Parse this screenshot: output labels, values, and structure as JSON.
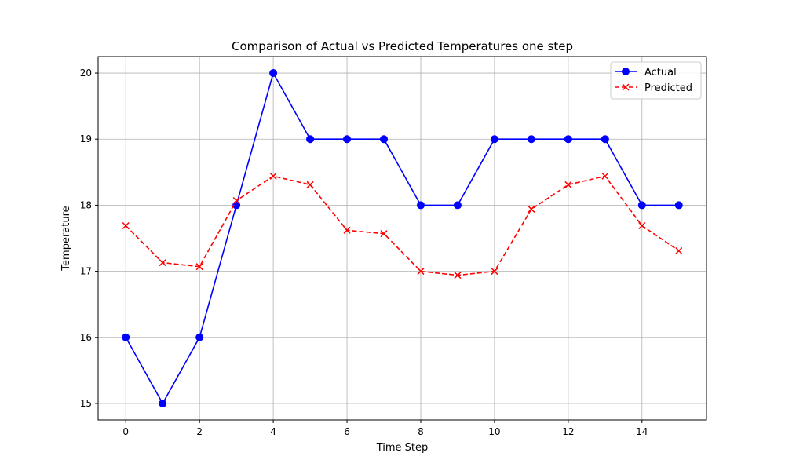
{
  "chart_data": {
    "type": "line",
    "title": "Comparison of Actual vs Predicted Temperatures one step",
    "xlabel": "Time Step",
    "ylabel": "Temperature",
    "xlim": [
      -0.75,
      15.75
    ],
    "ylim": [
      14.75,
      20.25
    ],
    "x_ticks": [
      0,
      2,
      4,
      6,
      8,
      10,
      12,
      14
    ],
    "y_ticks": [
      15,
      16,
      17,
      18,
      19,
      20
    ],
    "grid": true,
    "legend_position": "top-right",
    "x": [
      0,
      1,
      2,
      3,
      4,
      5,
      6,
      7,
      8,
      9,
      10,
      11,
      12,
      13,
      14,
      15
    ],
    "series": [
      {
        "name": "Actual",
        "color": "#0000ff",
        "marker": "circle",
        "line_style": "solid",
        "values": [
          16,
          15,
          16,
          18,
          20,
          19,
          19,
          19,
          18,
          18,
          19,
          19,
          19,
          19,
          18,
          18
        ]
      },
      {
        "name": "Predicted",
        "color": "#ff0000",
        "marker": "x",
        "line_style": "dashed",
        "values": [
          17.69,
          17.13,
          17.07,
          18.07,
          18.44,
          18.31,
          17.62,
          17.57,
          17.0,
          16.94,
          17.0,
          17.94,
          18.31,
          18.44,
          17.69,
          17.31
        ]
      }
    ]
  }
}
